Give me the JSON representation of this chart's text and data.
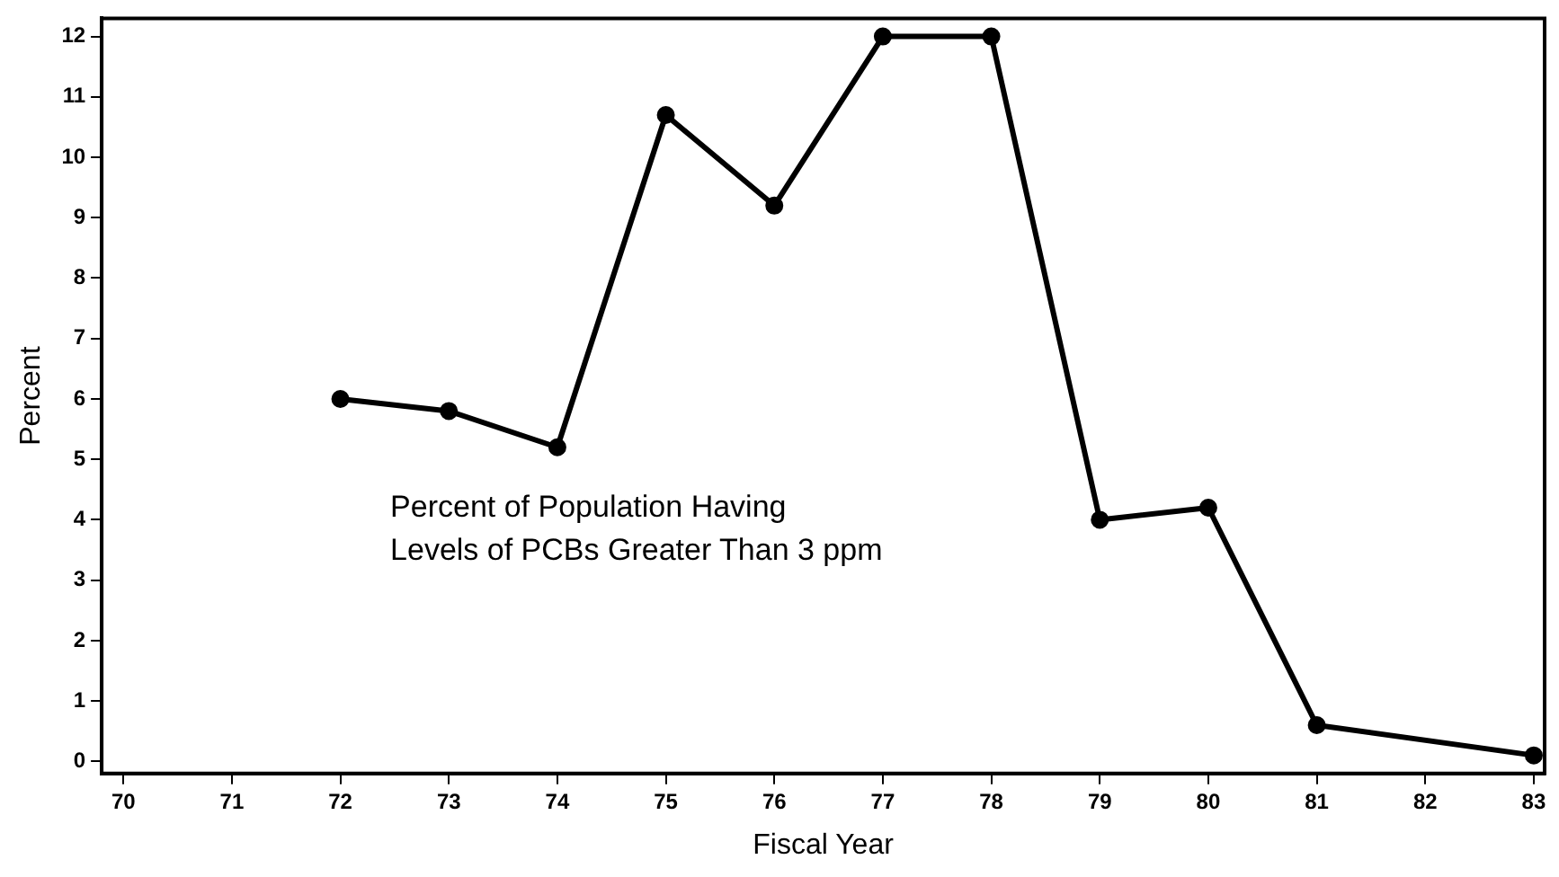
{
  "chart_data": {
    "type": "line",
    "xlabel": "Fiscal Year",
    "ylabel": "Percent",
    "annotations": [
      "Percent of Population Having\nLevels of PCBs Greater Than 3 ppm"
    ],
    "x": [
      72,
      73,
      74,
      75,
      76,
      77,
      78,
      79,
      80,
      81,
      83
    ],
    "series": [
      {
        "color": "#000000",
        "values": [
          6.0,
          5.8,
          5.2,
          10.7,
          9.2,
          12.0,
          12.0,
          4.0,
          4.2,
          0.6,
          0.1
        ]
      }
    ],
    "xlim": [
      69.8,
      83.1
    ],
    "xticks": [
      70,
      71,
      72,
      73,
      74,
      75,
      76,
      77,
      78,
      79,
      80,
      81,
      82,
      83
    ],
    "ylim": [
      -0.2,
      12.3
    ],
    "yticks": [
      0,
      1,
      2,
      3,
      4,
      5,
      6,
      7,
      8,
      9,
      10,
      11,
      12
    ],
    "grid": false,
    "legend": false,
    "marker": "circle",
    "line_style": "solid"
  }
}
